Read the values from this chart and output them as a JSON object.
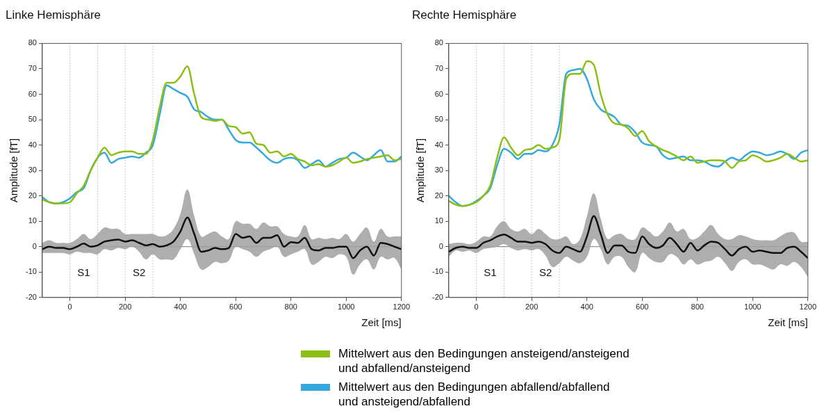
{
  "chart_data": [
    {
      "type": "line",
      "title": "Linke Hemisphäre",
      "xlabel": "Zeit [ms]",
      "ylabel": "Amplitude [fT]",
      "xlim": [
        -100,
        1200
      ],
      "xticks": [
        0,
        200,
        400,
        600,
        800,
        1000,
        1200
      ],
      "ylim": [
        -20,
        80
      ],
      "yticks": [
        -20,
        -10,
        0,
        10,
        20,
        30,
        40,
        50,
        60,
        70,
        80
      ],
      "grid": false,
      "legend": "bottom",
      "marker": "none",
      "line_style": "solid",
      "x": [
        -100,
        -75,
        -50,
        -25,
        0,
        25,
        50,
        75,
        100,
        125,
        150,
        175,
        200,
        225,
        250,
        275,
        300,
        325,
        350,
        375,
        400,
        425,
        450,
        475,
        500,
        525,
        550,
        575,
        600,
        625,
        650,
        675,
        700,
        725,
        750,
        775,
        800,
        825,
        850,
        875,
        900,
        925,
        950,
        975,
        1000,
        1025,
        1050,
        1075,
        1100,
        1125,
        1150,
        1175,
        1200
      ],
      "series": [
        {
          "name": "Mittelwert aus den Bedingungen ansteigend/ansteigend\nund abfallend/ansteigend",
          "color": "#8cbf14",
          "values": [
            18.5,
            17.5,
            17,
            17,
            17.5,
            21,
            24,
            30,
            35,
            39,
            36,
            37,
            37.5,
            37.5,
            36.5,
            36.5,
            42,
            55,
            64.5,
            64.5,
            67,
            71,
            60,
            51,
            50,
            49.5,
            50,
            47.5,
            47,
            44.5,
            45,
            40.5,
            40,
            37,
            37.5,
            35.5,
            36.5,
            34.5,
            33.5,
            32,
            32.5,
            31.5,
            32,
            33.5,
            35,
            33,
            33.5,
            34.5,
            35,
            35.5,
            36,
            34,
            34.5
          ]
        },
        {
          "name": "Mittelwert aus den Bedingungen abfallend/abfallend\nund ansteigend/abfallend",
          "color": "#35a9de",
          "values": [
            19.5,
            17.5,
            17,
            17.5,
            19,
            21.5,
            23,
            30,
            35,
            37,
            33,
            34.5,
            35,
            35.5,
            35,
            37,
            40,
            52,
            63.5,
            62,
            60.5,
            59,
            54,
            53,
            51,
            50,
            50,
            46,
            42,
            41,
            41,
            39,
            36.5,
            34,
            33,
            34.5,
            35,
            34,
            31,
            32.5,
            34,
            31.5,
            33,
            34.5,
            35,
            37,
            35.5,
            34,
            36,
            38,
            33.5,
            33.5,
            35.5
          ]
        },
        {
          "color": "#111111",
          "values": [
            -1,
            0,
            -0.5,
            -0.5,
            -1,
            0,
            1.2,
            0,
            0.5,
            2,
            2.5,
            2.8,
            2,
            2.5,
            1.5,
            0.5,
            1,
            0,
            0.5,
            2,
            6,
            11.5,
            5,
            -2,
            -1.5,
            -0.5,
            -1,
            -0.5,
            5,
            3.5,
            4,
            1.5,
            3.5,
            3.5,
            4.5,
            0,
            1.8,
            1.5,
            3.5,
            -1,
            -1.5,
            -0.5,
            -0.5,
            0,
            0,
            -4.5,
            -1.5,
            0,
            -3.5,
            1.5,
            1,
            0,
            -1
          ],
          "lower": [
            -2.5,
            -2.5,
            -2.5,
            -2.5,
            -3,
            -2,
            -2.5,
            -2.5,
            -3,
            -1,
            -1.5,
            -0.5,
            -1,
            0,
            -2,
            -5,
            -3,
            -5,
            -5,
            -5,
            -1,
            3,
            -3,
            -9,
            -8,
            -6,
            -6.5,
            -5.5,
            0,
            -1,
            -2,
            -4,
            -2,
            -1,
            0,
            -4,
            -3,
            -2,
            -1,
            -7,
            -6,
            -4,
            -4.5,
            -3,
            -4,
            -11,
            -7,
            -5,
            -9,
            -4,
            -5,
            -4.5,
            -9
          ],
          "upper": [
            1.5,
            2.5,
            1.5,
            1.5,
            1.5,
            3,
            5,
            3,
            5,
            7.5,
            7,
            7,
            5,
            5,
            5,
            5,
            5,
            4,
            4.5,
            7,
            13,
            22.5,
            12,
            4,
            5,
            6,
            4,
            3,
            10,
            9,
            9,
            7,
            9.5,
            8,
            8,
            5,
            4,
            4,
            8.5,
            3,
            3.5,
            3,
            3.5,
            3,
            5,
            2,
            5,
            7.5,
            2,
            7,
            4,
            4,
            4
          ]
        }
      ],
      "ref_lines": [
        {
          "axis": "x",
          "value": 0,
          "color": "#888888",
          "line_style": "dotted"
        },
        {
          "axis": "x",
          "value": 100,
          "color": "#888888",
          "line_style": "dotted"
        },
        {
          "axis": "x",
          "value": 200,
          "color": "#888888",
          "line_style": "dotted"
        },
        {
          "axis": "x",
          "value": 300,
          "color": "#888888",
          "line_style": "dotted"
        },
        {
          "axis": "y",
          "value": 0,
          "color": "#777777",
          "line_style": "solid"
        }
      ],
      "annotations": [
        "S1",
        "S2"
      ]
    },
    {
      "type": "line",
      "title": "Rechte Hemisphäre",
      "xlabel": "Zeit [ms]",
      "ylabel": "Amplitude [fT]",
      "xlim": [
        -100,
        1200
      ],
      "xticks": [
        0,
        200,
        400,
        600,
        800,
        1000,
        1200
      ],
      "ylim": [
        -20,
        80
      ],
      "yticks": [
        -20,
        -10,
        0,
        10,
        20,
        30,
        40,
        50,
        60,
        70,
        80
      ],
      "grid": false,
      "legend": "bottom",
      "marker": "none",
      "line_style": "solid",
      "x": [
        -100,
        -75,
        -50,
        -25,
        0,
        25,
        50,
        75,
        100,
        125,
        150,
        175,
        200,
        225,
        250,
        275,
        300,
        325,
        350,
        375,
        400,
        425,
        450,
        475,
        500,
        525,
        550,
        575,
        600,
        625,
        650,
        675,
        700,
        725,
        750,
        775,
        800,
        825,
        850,
        875,
        900,
        925,
        950,
        975,
        1000,
        1025,
        1050,
        1075,
        1100,
        1125,
        1150,
        1175,
        1200
      ],
      "series": [
        {
          "name": "Mittelwert aus den Bedingungen ansteigend/ansteigend\nund abfallend/ansteigend",
          "color": "#8cbf14",
          "values": [
            18,
            16.5,
            16,
            16.5,
            17.5,
            20,
            24,
            35,
            43,
            39,
            36,
            38,
            38.5,
            40,
            38.5,
            39,
            42,
            66,
            68,
            68,
            73,
            71.5,
            60,
            52,
            48.5,
            48,
            46.5,
            43.5,
            45.5,
            41.5,
            39.5,
            38,
            37,
            35.5,
            34,
            35.5,
            33,
            33.5,
            34,
            34,
            33.5,
            31,
            33.5,
            34,
            36,
            35,
            33.5,
            34,
            35,
            36.5,
            35,
            33.5,
            34
          ]
        },
        {
          "name": "Mittelwert aus den Bedingungen abfallend/abfallend\nund ansteigend/abfallend",
          "color": "#35a9de",
          "values": [
            20,
            17.5,
            16,
            16.5,
            18,
            20,
            23,
            32,
            38.5,
            37,
            34.5,
            36.5,
            36.5,
            38,
            37.5,
            40,
            48,
            68,
            69.5,
            70,
            66,
            58,
            54,
            52.5,
            51,
            48,
            47.5,
            45,
            41,
            40,
            39.5,
            36,
            34.5,
            35,
            35.5,
            34,
            34,
            33.5,
            32,
            31.5,
            33.5,
            35,
            34,
            36,
            37.5,
            37,
            36,
            36.5,
            37.5,
            36.5,
            34.5,
            37,
            38
          ]
        },
        {
          "color": "#111111",
          "values": [
            -2,
            -0.5,
            0,
            -0.5,
            -0.5,
            1.5,
            2.5,
            4,
            4.8,
            3.5,
            2,
            2,
            1.5,
            2,
            1,
            -1.5,
            -2.5,
            0,
            -1,
            -2,
            4,
            12,
            5,
            -2.5,
            0.5,
            0.5,
            -2,
            -2.5,
            4,
            1,
            -0.5,
            0.5,
            3.5,
            1,
            -2,
            1.5,
            -1.5,
            0.5,
            2,
            1.5,
            -1,
            -3.5,
            -1,
            0,
            -2,
            -1.5,
            -2,
            -2.5,
            -2.5,
            -0.5,
            0,
            -2,
            -4.5
          ],
          "lower": [
            -4,
            -1.5,
            -2,
            -1.5,
            -2.5,
            -1,
            -0.5,
            0,
            1,
            -0.5,
            -1.5,
            -1,
            -1.5,
            -1,
            -3.5,
            -8,
            -6.5,
            -4,
            -5.5,
            -6.5,
            -4,
            3,
            -1,
            -7,
            -4,
            -4,
            -8,
            -10,
            -2.5,
            -4.5,
            -6,
            -6,
            -3,
            -4,
            -7,
            -5,
            -7,
            -6,
            -5.5,
            -4,
            -6.5,
            -9.5,
            -6,
            -5,
            -7,
            -7,
            -8,
            -9,
            -7,
            -7.5,
            -6,
            -8,
            -12
          ],
          "upper": [
            1,
            1.5,
            1.5,
            1,
            2,
            4,
            4,
            8,
            10,
            7,
            6,
            7,
            5,
            7,
            5,
            3,
            3,
            4,
            1,
            3,
            12,
            21,
            11,
            3,
            4.5,
            5,
            3,
            3,
            7.5,
            6,
            4,
            6,
            9.5,
            6,
            7,
            3,
            3.5,
            6,
            8.5,
            5,
            3,
            3,
            4.5,
            4,
            3,
            2.5,
            2.5,
            2.5,
            4,
            5.5,
            5.5,
            2,
            2
          ]
        }
      ],
      "ref_lines": [
        {
          "axis": "x",
          "value": 0,
          "color": "#888888",
          "line_style": "dotted"
        },
        {
          "axis": "x",
          "value": 100,
          "color": "#888888",
          "line_style": "dotted"
        },
        {
          "axis": "x",
          "value": 200,
          "color": "#888888",
          "line_style": "dotted"
        },
        {
          "axis": "x",
          "value": 300,
          "color": "#888888",
          "line_style": "dotted"
        },
        {
          "axis": "y",
          "value": 0,
          "color": "#777777",
          "line_style": "solid"
        }
      ],
      "annotations": [
        "S1",
        "S2"
      ]
    }
  ]
}
